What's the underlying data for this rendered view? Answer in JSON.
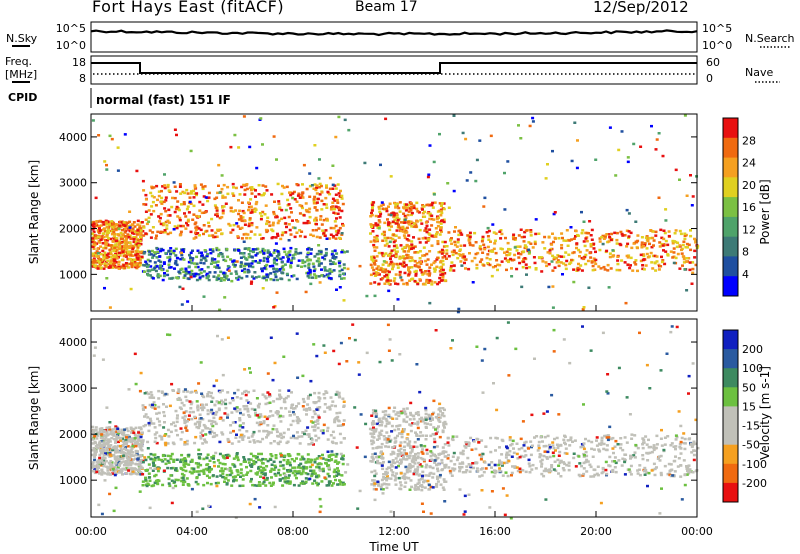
{
  "header": {
    "title": "Fort Hays East (fitACF)",
    "beam": "Beam 17",
    "date": "12/Sep/2012"
  },
  "top_panels": {
    "nsky_label": "N.Sky",
    "nsearch_label": "N.Search",
    "noise_ticks": [
      "10^5",
      "10^0"
    ],
    "freq_label": "Freq.",
    "freq_unit": "[MHz]",
    "freq_ticks": [
      "18",
      "8"
    ],
    "nave_label": "Nave",
    "nave_ticks": [
      "60",
      "0"
    ],
    "cpid_label": "CPID",
    "cpid_text": "normal (fast) 151 IF"
  },
  "colors": {
    "power": [
      "#0000ff",
      "#1f4fa0",
      "#3d7a76",
      "#4fa36a",
      "#7bc043",
      "#e0d020",
      "#f5a020",
      "#f06a10",
      "#e81010"
    ],
    "velocity": [
      "#e81010",
      "#f06a10",
      "#f5a020",
      "#c0c0b8",
      "#c0c0b8",
      "#6cc040",
      "#3d8a60",
      "#2a5aa0",
      "#1020c0"
    ]
  },
  "chart_data": [
    {
      "type": "heatmap",
      "name": "power",
      "ylabel": "Slant Range [km]",
      "ylim": [
        200,
        4500
      ],
      "y_ticks": [
        "1000",
        "2000",
        "3000",
        "4000"
      ],
      "xlim_hours": [
        0,
        24
      ],
      "colorbar_label": "Power [dB]",
      "colorbar_ticks": [
        "4",
        "8",
        "12",
        "16",
        "20",
        "24",
        "28"
      ],
      "colorbar_range": [
        0,
        32
      ]
    },
    {
      "type": "heatmap",
      "name": "velocity",
      "ylabel": "Slant Range [km]",
      "ylim": [
        200,
        4500
      ],
      "y_ticks": [
        "1000",
        "2000",
        "3000",
        "4000"
      ],
      "xlim_hours": [
        0,
        24
      ],
      "colorbar_label": "Velocity [m s-1]",
      "colorbar_ticks": [
        "200",
        "100",
        "50",
        "15",
        "-15",
        "-50",
        "-100",
        "-200"
      ]
    }
  ],
  "x_axis": {
    "ticks": [
      "00:00",
      "04:00",
      "08:00",
      "12:00",
      "16:00",
      "20:00",
      "00:00"
    ],
    "label": "Time UT"
  }
}
